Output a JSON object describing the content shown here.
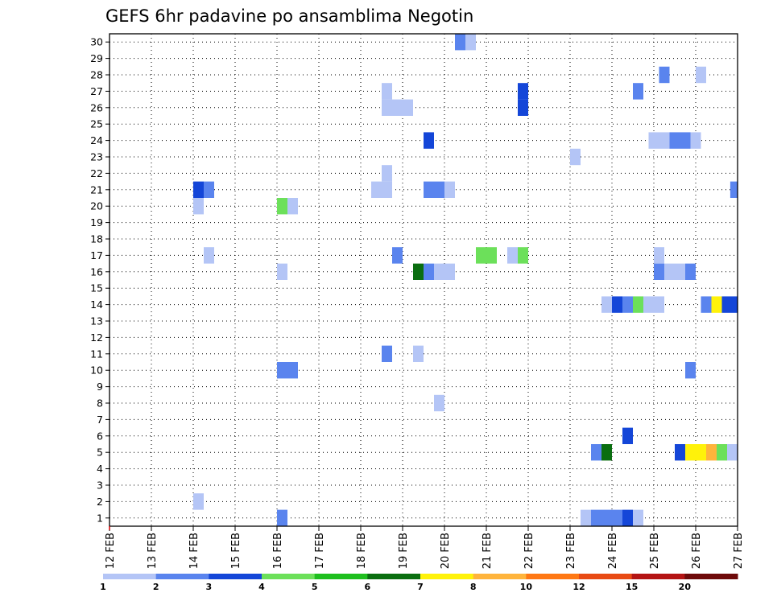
{
  "chart_data": {
    "type": "heatmap",
    "title": "GEFS 6hr padavine po ansamblima Negotin",
    "y_members": [
      1,
      2,
      3,
      4,
      5,
      6,
      7,
      8,
      9,
      10,
      11,
      12,
      13,
      14,
      15,
      16,
      17,
      18,
      19,
      20,
      21,
      22,
      23,
      24,
      25,
      26,
      27,
      28,
      29,
      30
    ],
    "ylim": [
      0.5,
      30.5
    ],
    "x_tick_labels": [
      "12 FEB",
      "13 FEB",
      "14 FEB",
      "15 FEB",
      "16 FEB",
      "17 FEB",
      "18 FEB",
      "19 FEB",
      "20 FEB",
      "21 FEB",
      "22 FEB",
      "23 FEB",
      "24 FEB",
      "25 FEB",
      "26 FEB",
      "27 FEB"
    ],
    "x_unit": "6-hour step from 12 FEB 00Z",
    "xlim": [
      0,
      60
    ],
    "grid": true,
    "colorbar": {
      "placement": "bottom",
      "bins": [
        {
          "from": "1",
          "to": "2",
          "color": "#b4c5f6"
        },
        {
          "from": "2",
          "to": "3",
          "color": "#5a84ee"
        },
        {
          "from": "3",
          "to": "4",
          "color": "#1446d8"
        },
        {
          "from": "4",
          "to": "5",
          "color": "#6ce05a"
        },
        {
          "from": "5",
          "to": "6",
          "color": "#1ebf1e"
        },
        {
          "from": "6",
          "to": "7",
          "color": "#0a6e10"
        },
        {
          "from": "7",
          "to": "8",
          "color": "#fff20a"
        },
        {
          "from": "8",
          "to": "10",
          "color": "#ffb43c"
        },
        {
          "from": "10",
          "to": "12",
          "color": "#ff7814"
        },
        {
          "from": "12",
          "to": "15",
          "color": "#e84a14"
        },
        {
          "from": "15",
          "to": "20",
          "color": "#b41414"
        },
        {
          "from": "20",
          "to": "",
          "color": "#6e0a0a"
        }
      ],
      "labels": [
        "1",
        "2",
        "3",
        "4",
        "5",
        "6",
        "7",
        "8",
        "10",
        "12",
        "15",
        "20"
      ]
    },
    "cells": [
      [
        33.5,
        30,
        1
      ],
      [
        34.5,
        30,
        0
      ],
      [
        53,
        28,
        1
      ],
      [
        56.5,
        28,
        0
      ],
      [
        26.5,
        27,
        0
      ],
      [
        39.5,
        27,
        2
      ],
      [
        50.5,
        27,
        1
      ],
      [
        26.5,
        26,
        0
      ],
      [
        27.5,
        26,
        0
      ],
      [
        28.5,
        26,
        0
      ],
      [
        39.5,
        26,
        2
      ],
      [
        30.5,
        24,
        2
      ],
      [
        52,
        24,
        0
      ],
      [
        53,
        24,
        0
      ],
      [
        54,
        24,
        1
      ],
      [
        55,
        24,
        1
      ],
      [
        56,
        24,
        0
      ],
      [
        44.5,
        23,
        0
      ],
      [
        26.5,
        22,
        0
      ],
      [
        8.5,
        21,
        2
      ],
      [
        9.5,
        21,
        1
      ],
      [
        25.5,
        21,
        0
      ],
      [
        26.5,
        21,
        0
      ],
      [
        30.5,
        21,
        1
      ],
      [
        31.5,
        21,
        1
      ],
      [
        32.5,
        21,
        0
      ],
      [
        59.8,
        21,
        1
      ],
      [
        8.5,
        20,
        0
      ],
      [
        16.5,
        20,
        3
      ],
      [
        17.5,
        20,
        0
      ],
      [
        9.5,
        17,
        0
      ],
      [
        27.5,
        17,
        1
      ],
      [
        35.5,
        17,
        3
      ],
      [
        36.5,
        17,
        3
      ],
      [
        38.5,
        17,
        0
      ],
      [
        39.5,
        17,
        3
      ],
      [
        52.5,
        17,
        0
      ],
      [
        16.5,
        16,
        0
      ],
      [
        29.5,
        16,
        5
      ],
      [
        30.5,
        16,
        1
      ],
      [
        31.5,
        16,
        0
      ],
      [
        32.5,
        16,
        0
      ],
      [
        52.5,
        16,
        1
      ],
      [
        53.5,
        16,
        0
      ],
      [
        54.5,
        16,
        0
      ],
      [
        55.5,
        16,
        1
      ],
      [
        47.5,
        14,
        0
      ],
      [
        48.5,
        14,
        2
      ],
      [
        49.5,
        14,
        1
      ],
      [
        50.5,
        14,
        3
      ],
      [
        51.5,
        14,
        0
      ],
      [
        52.5,
        14,
        0
      ],
      [
        57,
        14,
        1
      ],
      [
        58,
        14,
        6
      ],
      [
        59,
        14,
        2
      ],
      [
        60,
        14,
        2
      ],
      [
        26.5,
        11,
        1
      ],
      [
        29.5,
        11,
        0
      ],
      [
        16.5,
        10,
        1
      ],
      [
        17.5,
        10,
        1
      ],
      [
        55.5,
        10,
        1
      ],
      [
        31.5,
        8,
        0
      ],
      [
        49.5,
        6,
        2
      ],
      [
        46.5,
        5,
        1
      ],
      [
        47.5,
        5,
        5
      ],
      [
        54.5,
        5,
        2
      ],
      [
        55.5,
        5,
        6
      ],
      [
        56.5,
        5,
        6
      ],
      [
        57.5,
        5,
        7
      ],
      [
        58.5,
        5,
        3
      ],
      [
        59.5,
        5,
        0
      ],
      [
        8.5,
        2,
        0
      ],
      [
        16.5,
        1,
        1
      ],
      [
        45.5,
        1,
        0
      ],
      [
        46.5,
        1,
        1
      ],
      [
        47.5,
        1,
        1
      ],
      [
        48.5,
        1,
        1
      ],
      [
        49.5,
        1,
        2
      ],
      [
        50.5,
        1,
        0
      ]
    ]
  }
}
